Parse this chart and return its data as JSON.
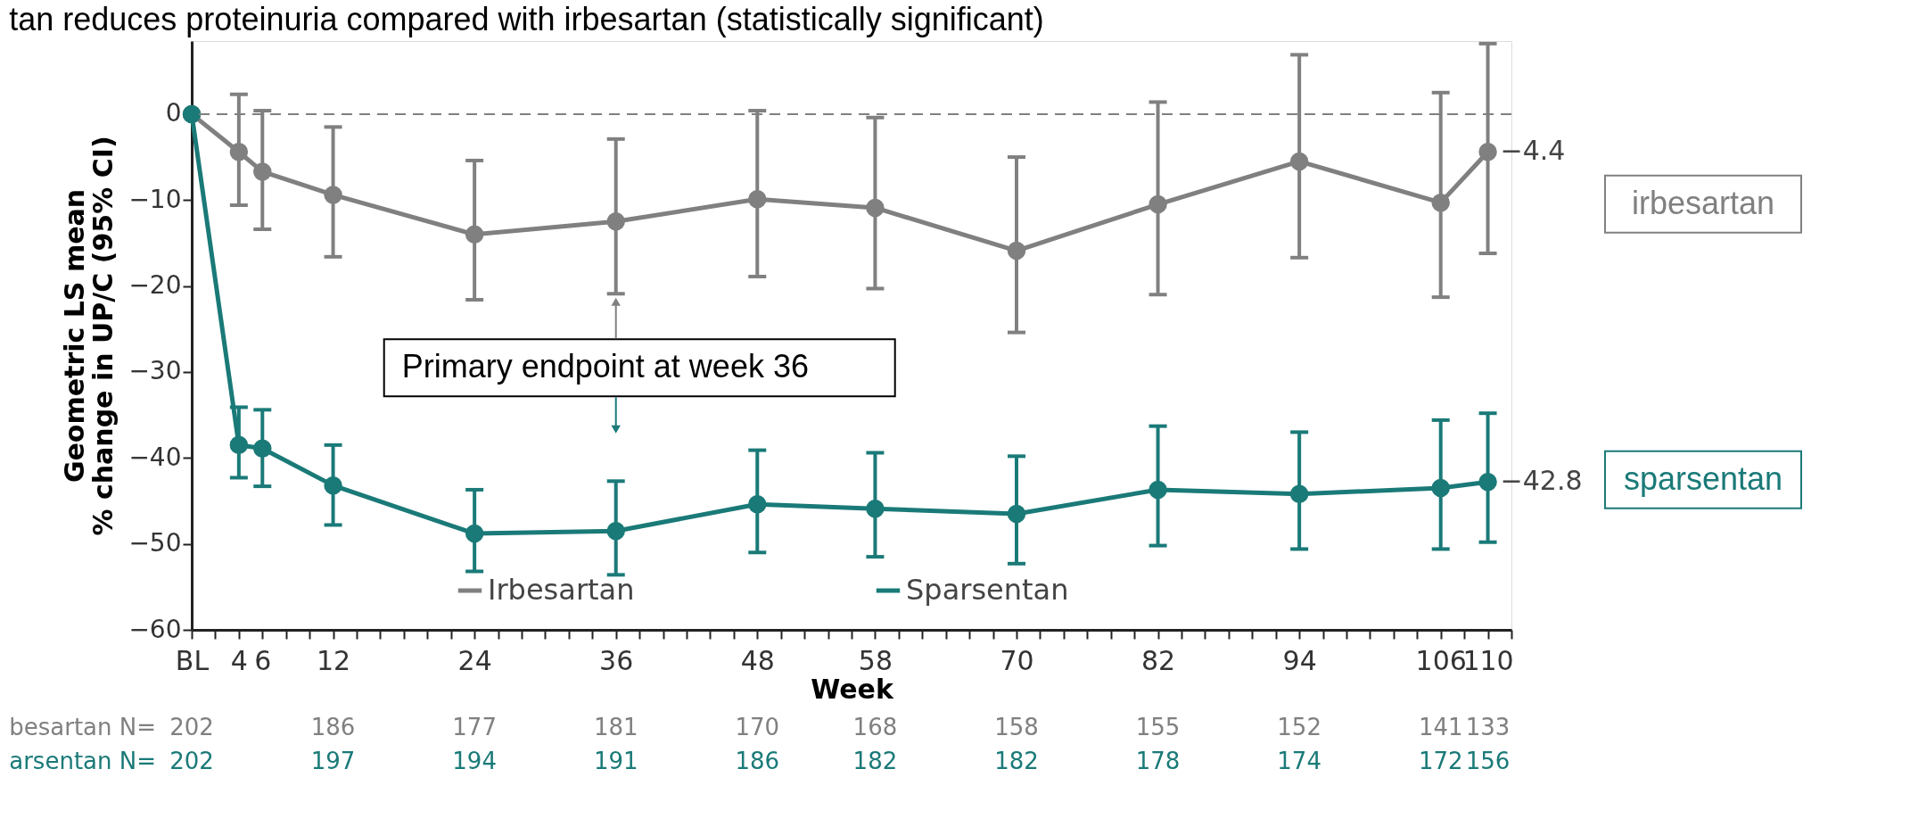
{
  "chart_data": {
    "type": "line",
    "title": "tan reduces proteinuria compared with irbesartan (statistically significant)",
    "xlabel": "Week",
    "ylabel": "Geometric LS mean\n% change in UP/C (95% CI)",
    "x": [
      0,
      4,
      6,
      12,
      24,
      36,
      48,
      58,
      70,
      82,
      94,
      106,
      110
    ],
    "series": [
      {
        "name": "Irbesartan",
        "color": "#808080",
        "values": [
          0,
          -4.4,
          -6.7,
          -9.4,
          -14.0,
          -12.5,
          -9.9,
          -10.9,
          -15.9,
          -10.5,
          -5.5,
          -10.3,
          -4.4
        ],
        "errors": [
          null,
          [
            -10.6,
            2.3
          ],
          [
            -13.4,
            0.4
          ],
          [
            -16.6,
            -1.5
          ],
          [
            -21.6,
            -5.4
          ],
          [
            -20.9,
            -2.9
          ],
          [
            -18.9,
            0.4
          ],
          [
            -20.3,
            -0.4
          ],
          [
            -25.4,
            -5.0
          ],
          [
            -21.0,
            1.4
          ],
          [
            -16.7,
            6.9
          ],
          [
            -21.3,
            2.5
          ],
          [
            -16.2,
            8.2
          ]
        ],
        "value_labels": [
          null,
          null,
          null,
          null,
          null,
          null,
          null,
          null,
          null,
          null,
          null,
          null,
          "−4.4"
        ]
      },
      {
        "name": "Sparsentan",
        "color": "#1a7a78",
        "values": [
          0,
          -38.5,
          -38.9,
          -43.2,
          -48.8,
          -48.5,
          -45.4,
          -45.9,
          -46.5,
          -43.7,
          -44.2,
          -43.5,
          -42.8
        ],
        "errors": [
          null,
          [
            -42.3,
            -34.1
          ],
          [
            -43.3,
            -34.4
          ],
          [
            -47.8,
            -38.5
          ],
          [
            -53.2,
            -43.7
          ],
          [
            -53.6,
            -42.7
          ],
          [
            -51.0,
            -39.1
          ],
          [
            -51.5,
            -39.4
          ],
          [
            -52.3,
            -39.8
          ],
          [
            -50.2,
            -36.3
          ],
          [
            -50.6,
            -37.0
          ],
          [
            -50.6,
            -35.6
          ],
          [
            -49.8,
            -34.8
          ]
        ],
        "value_labels": [
          null,
          null,
          null,
          null,
          null,
          null,
          null,
          null,
          null,
          null,
          null,
          null,
          "−42.8"
        ]
      }
    ],
    "xlim": [
      0,
      112
    ],
    "xticks": [
      {
        "value": 0,
        "label": "BL"
      },
      {
        "value": 2,
        "label": null
      },
      4,
      6,
      {
        "value": 8,
        "label": null
      },
      {
        "value": 10,
        "label": null
      },
      12,
      {
        "value": 14,
        "label": null
      },
      {
        "value": 16,
        "label": null
      },
      {
        "value": 18,
        "label": null
      },
      {
        "value": 20,
        "label": null
      },
      {
        "value": 22,
        "label": null
      },
      24,
      {
        "value": 26,
        "label": null
      },
      {
        "value": 28,
        "label": null
      },
      {
        "value": 30,
        "label": null
      },
      {
        "value": 32,
        "label": null
      },
      {
        "value": 34,
        "label": null
      },
      36,
      {
        "value": 38,
        "label": null
      },
      {
        "value": 40,
        "label": null
      },
      {
        "value": 42,
        "label": null
      },
      {
        "value": 44,
        "label": null
      },
      {
        "value": 46,
        "label": null
      },
      48,
      {
        "value": 50,
        "label": null
      },
      {
        "value": 52,
        "label": null
      },
      {
        "value": 54,
        "label": null
      },
      {
        "value": 56,
        "label": null
      },
      58,
      {
        "value": 60,
        "label": null
      },
      {
        "value": 62,
        "label": null
      },
      {
        "value": 64,
        "label": null
      },
      {
        "value": 66,
        "label": null
      },
      {
        "value": 68,
        "label": null
      },
      70,
      {
        "value": 72,
        "label": null
      },
      {
        "value": 74,
        "label": null
      },
      {
        "value": 76,
        "label": null
      },
      {
        "value": 78,
        "label": null
      },
      {
        "value": 80,
        "label": null
      },
      82,
      {
        "value": 84,
        "label": null
      },
      {
        "value": 86,
        "label": null
      },
      {
        "value": 88,
        "label": null
      },
      {
        "value": 90,
        "label": null
      },
      {
        "value": 92,
        "label": null
      },
      94,
      {
        "value": 96,
        "label": null
      },
      {
        "value": 98,
        "label": null
      },
      {
        "value": 100,
        "label": null
      },
      {
        "value": 102,
        "label": null
      },
      {
        "value": 104,
        "label": null
      },
      106,
      {
        "value": 108,
        "label": null
      },
      110,
      {
        "value": 112,
        "label": null
      }
    ],
    "ylim": [
      -60,
      8.5
    ],
    "yticks": [
      {
        "value": -60,
        "label": "−60"
      },
      {
        "value": -50,
        "label": "−50"
      },
      {
        "value": -40,
        "label": "−40"
      },
      {
        "value": -30,
        "label": "−30"
      },
      {
        "value": -20,
        "label": "−20"
      },
      {
        "value": -10,
        "label": "−10"
      },
      0
    ],
    "ref_lines": [
      {
        "axis": "y",
        "value": 0,
        "color": "#808080",
        "line_style": "dashed"
      }
    ],
    "marker": "circle",
    "line_style": "solid",
    "grid": false,
    "legend": "bottom",
    "annotations": [
      {
        "text": "Primary endpoint at week 36",
        "x": 36,
        "y": -20.9
      },
      "irbesartan",
      "sparsentan",
      "besartan N=",
      "202",
      "186",
      "177",
      "181",
      "170",
      "168",
      "158",
      "155",
      "152",
      "141",
      "133",
      "arsentan N=",
      "202",
      "197",
      "194",
      "191",
      "186",
      "182",
      "182",
      "178",
      "174",
      "172",
      "156"
    ]
  }
}
